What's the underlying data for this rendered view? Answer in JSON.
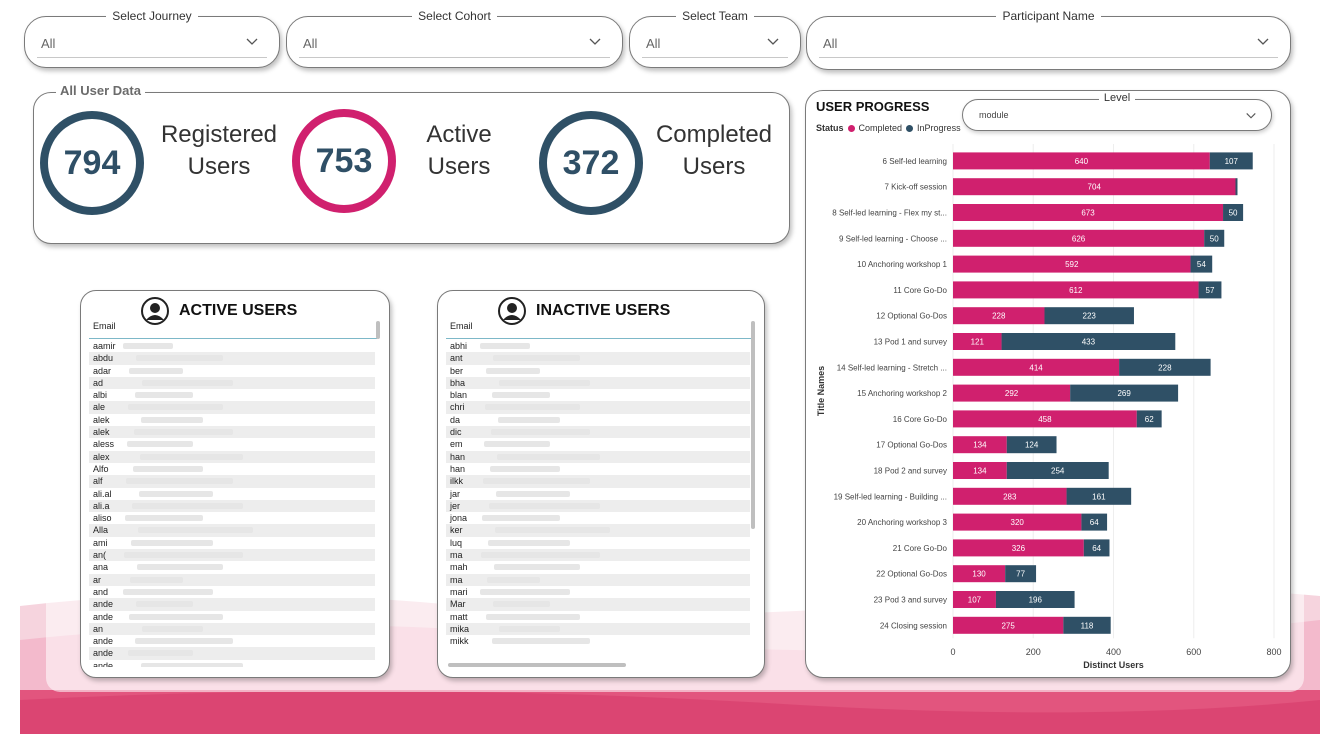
{
  "slicers": {
    "journey": {
      "label": "Select Journey",
      "value": "All"
    },
    "cohort": {
      "label": "Select Cohort",
      "value": "All"
    },
    "team": {
      "label": "Select Team",
      "value": "All"
    },
    "participant": {
      "label": "Participant Name",
      "value": "All"
    }
  },
  "kpis": {
    "title": "All User Data",
    "registered": {
      "value": "794",
      "line1": "Registered",
      "line2": "Users",
      "color": "#2f5066"
    },
    "active": {
      "value": "753",
      "line1": "Active",
      "line2": "Users",
      "color": "#d0206e"
    },
    "completed": {
      "value": "372",
      "line1": "Completed",
      "line2": "Users",
      "color": "#2f5066"
    }
  },
  "active_users": {
    "title": "ACTIVE USERS",
    "column": "Email",
    "rows": [
      "aamir",
      "abdu",
      "adar",
      "ad",
      "albi",
      "ale",
      "alek",
      "alek",
      "aless",
      "alex",
      "Alfo",
      "alf",
      "ali.al",
      "ali.a",
      "aliso",
      "Alla",
      "ami",
      "an(",
      "ana",
      "ar",
      "and",
      "ande",
      "ande",
      "an",
      "ande",
      "ande",
      "ande"
    ]
  },
  "inactive_users": {
    "title": "INACTIVE USERS",
    "column": "Email",
    "rows": [
      "abhi",
      "ant",
      "ber",
      "bha",
      "blan",
      "chri",
      "da",
      "dic",
      "em",
      "han",
      "han",
      "ilkk",
      "jar",
      "jer",
      "jona",
      "ker",
      "luq",
      "ma",
      "mah",
      "ma",
      "mari",
      "Mar",
      "matt",
      "mika",
      "mikk"
    ]
  },
  "level_slicer": {
    "label": "Level",
    "value": "module"
  },
  "chart_data": {
    "type": "bar",
    "orientation": "horizontal",
    "stacked": true,
    "title": "USER PROGRESS",
    "legend_title": "Status",
    "xlabel": "Distinct Users",
    "ylabel": "Title Names",
    "xlim": [
      0,
      800
    ],
    "xticks": [
      0,
      200,
      400,
      600,
      800
    ],
    "categories": [
      "6 Self-led learning",
      "7 Kick-off session",
      "8 Self-led learning - Flex my st...",
      "9 Self-led learning - Choose ...",
      "10 Anchoring workshop 1",
      "11 Core Go-Do",
      "12 Optional Go-Dos",
      "13 Pod 1 and survey",
      "14 Self-led learning - Stretch ...",
      "15 Anchoring workshop 2",
      "16 Core Go-Do",
      "17 Optional Go-Dos",
      "18 Pod 2 and survey",
      "19 Self-led learning - Building ...",
      "20 Anchoring workshop 3",
      "21 Core Go-Do",
      "22 Optional Go-Dos",
      "23 Pod 3 and survey",
      "24 Closing session"
    ],
    "series": [
      {
        "name": "Completed",
        "color": "#d0206e",
        "values": [
          640,
          704,
          673,
          626,
          592,
          612,
          228,
          121,
          414,
          292,
          458,
          134,
          134,
          283,
          320,
          326,
          130,
          107,
          275
        ]
      },
      {
        "name": "InProgress",
        "color": "#2f5066",
        "values": [
          107,
          5,
          50,
          50,
          54,
          57,
          223,
          433,
          228,
          269,
          62,
          124,
          254,
          161,
          64,
          64,
          77,
          196,
          118
        ]
      }
    ],
    "show_labels": [
      true,
      true,
      true,
      true,
      true,
      true,
      true,
      true,
      true,
      true,
      true,
      true,
      true,
      true,
      true,
      true,
      true,
      true,
      true
    ],
    "show_labels_inprogress": [
      true,
      false,
      true,
      true,
      true,
      true,
      true,
      true,
      true,
      true,
      true,
      true,
      true,
      true,
      true,
      true,
      true,
      true,
      true
    ]
  }
}
